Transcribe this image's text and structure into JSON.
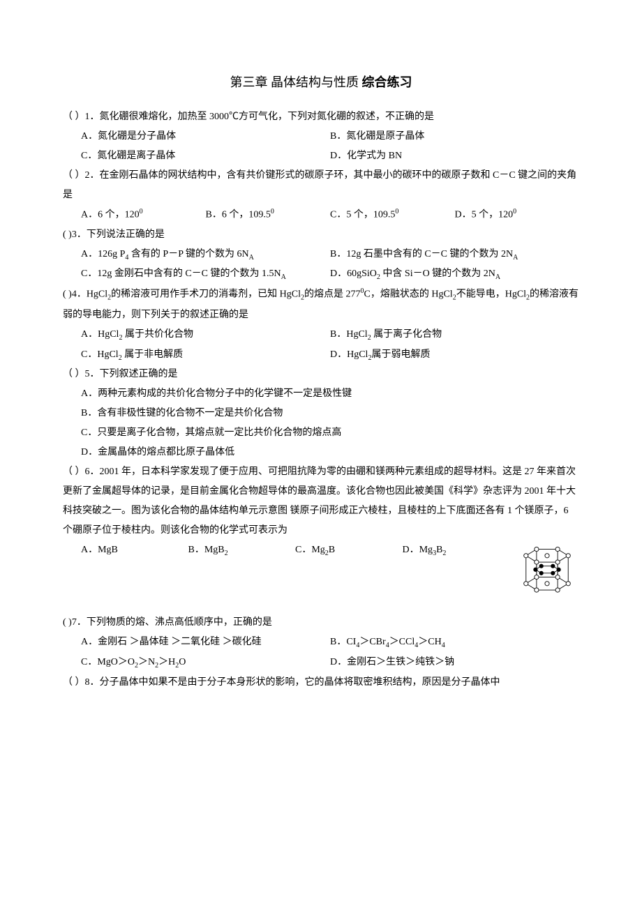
{
  "title": {
    "part1": "第三章 晶体结构与性质 ",
    "part2": "综合练习"
  },
  "questions": [
    {
      "stem_lines": [
        "（    ）1．氮化硼很难熔化，加热至 3000℃方可气化，下列对氮化硼的叙述，不正确的是"
      ],
      "option_layout": "2col",
      "options": [
        "A．氮化硼是分子晶体",
        "B．氮化硼是原子晶体",
        "C．氮化硼是离子晶体",
        "D．化学式为 BN"
      ]
    },
    {
      "stem_lines": [
        "（    ）2．在金刚石晶体的网状结构中，含有共价键形式的碳原子环，其中最小的碳环中的碳原子数和 C－C 键之间的夹角是"
      ],
      "option_layout": "4col",
      "options": [
        "A．6 个，120<sup>0</sup>",
        "B．6 个，109.5<sup>0</sup>",
        "C．5 个，109.5<sup>0</sup>",
        "D．5 个，120<sup>0</sup>"
      ]
    },
    {
      "stem_lines": [
        "(       )3．下列说法正确的是"
      ],
      "option_layout": "2col",
      "options": [
        "A．126g P<sub>4</sub> 含有的 P－P 键的个数为 6N<sub>A</sub>",
        "B．12g 石墨中含有的 C－C 键的个数为 2N<sub>A</sub>",
        "C．12g 金刚石中含有的 C－C 键的个数为 1.5N<sub>A</sub>",
        "D．60gSiO<sub>2</sub> 中含 Si－O 键的个数为 2N<sub>A</sub>"
      ]
    },
    {
      "stem_lines": [
        "(       )4．HgCl<sub>2</sub>的稀溶液可用作手术刀的消毒剂，已知 HgCl<sub>2</sub>的熔点是 277<sup>0</sup>C，熔融状态的 HgCl<sub>2</sub>不能导电，HgCl<sub>2</sub>的稀溶液有弱的导电能力，则下列关于的叙述正确的是"
      ],
      "option_layout": "2col",
      "options": [
        "A．HgCl<sub>2</sub> 属于共价化合物",
        "B．HgCl<sub>2</sub> 属于离子化合物",
        "C．HgCl<sub>2</sub> 属于非电解质",
        "D．HgCl<sub>2</sub>属于弱电解质"
      ]
    },
    {
      "stem_lines": [
        "（    ）5．下列叙述正确的是"
      ],
      "option_layout": "1col",
      "options": [
        "A．两种元素构成的共价化合物分子中的化学键不一定是极性键",
        "B．含有非极性键的化合物不一定是共价化合物",
        "C．只要是离子化合物，其熔点就一定比共价化合物的熔点高",
        "D．金属晶体的熔点都比原子晶体低"
      ]
    },
    {
      "has_figure": true,
      "stem_lines": [
        "（    ）6．2001 年，日本科学家发现了便于应用、可把阻抗降为零的由硼和镁两种元素组成的超导材料。这是 27 年来首次更新了金属超导体的记录，是目前金属化合物超导体的最高温度。该化合物也因此被美国《科学》杂志评为 2001 年十大科技突破之一。图为该化合物的晶体结构单元示意图 镁原子间形成正六棱柱，且棱柱的上下底面还各有 1 个镁原子，6 个硼原子位于棱柱内。则该化合物的化学式可表示为"
      ],
      "option_layout": "4col",
      "options": [
        "A．MgB",
        "B．MgB<sub>2</sub>",
        "C．Mg<sub>2</sub>B",
        "D．Mg<sub>3</sub>B<sub>2</sub>"
      ]
    },
    {
      "stem_lines": [
        "(       )7．下列物质的熔、沸点高低顺序中，正确的是"
      ],
      "option_layout": "2col",
      "options": [
        "A．金刚石 ＞晶体硅 ＞二氧化硅 ＞碳化硅",
        "B．CI<sub>4</sub>＞CBr<sub>4</sub>＞CCl<sub>4</sub>＞CH<sub>4</sub>",
        "C．MgO＞O<sub>2</sub>＞N<sub>2</sub>＞H<sub>2</sub>O",
        "D．金刚石＞生铁＞纯铁＞钠"
      ]
    },
    {
      "stem_lines": [
        " （    ）8．分子晶体中如果不是由于分子本身形状的影响，它的晶体将取密堆积结构，原因是分子晶体中"
      ],
      "option_layout": "none",
      "options": []
    }
  ],
  "figure": {
    "stroke": "#000000",
    "fill_open": "#ffffff",
    "fill_solid": "#000000"
  }
}
